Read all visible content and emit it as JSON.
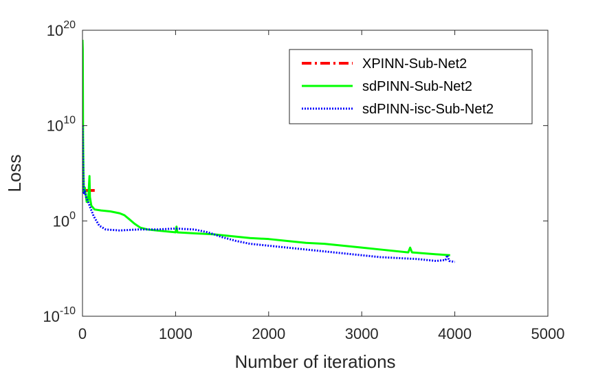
{
  "chart_data": {
    "type": "line",
    "title": "",
    "xlabel": "Number of iterations",
    "ylabel": "Loss",
    "xlim": [
      0,
      5000
    ],
    "ylim_log10": [
      -10,
      20
    ],
    "y_scale": "log",
    "x_ticks": [
      0,
      1000,
      2000,
      3000,
      4000,
      5000
    ],
    "x_tick_labels": [
      "0",
      "1000",
      "2000",
      "3000",
      "4000",
      "5000"
    ],
    "y_ticks_log10": [
      -10,
      0,
      10,
      20
    ],
    "y_tick_base": "10",
    "y_tick_exponents": [
      "-10",
      "0",
      "10",
      "20"
    ],
    "legend_position": "top-right",
    "series": [
      {
        "name": "XPINN-Sub-Net2",
        "color": "#ff0000",
        "style": "dashdot",
        "points_log10": [
          [
            0,
            7
          ],
          [
            5,
            5.5
          ],
          [
            10,
            3.5
          ],
          [
            20,
            3.2
          ],
          [
            60,
            3.2
          ],
          [
            100,
            3.2
          ],
          [
            140,
            3.2
          ]
        ]
      },
      {
        "name": "sdPINN-Sub-Net2",
        "color": "#00ff00",
        "style": "solid",
        "points_log10": [
          [
            0,
            19
          ],
          [
            3,
            18
          ],
          [
            6,
            9
          ],
          [
            10,
            5.5
          ],
          [
            15,
            3
          ],
          [
            25,
            3.5
          ],
          [
            45,
            2
          ],
          [
            60,
            2
          ],
          [
            75,
            4.7
          ],
          [
            80,
            2.5
          ],
          [
            95,
            1.6
          ],
          [
            130,
            1.2
          ],
          [
            200,
            1.1
          ],
          [
            300,
            1.0
          ],
          [
            400,
            0.8
          ],
          [
            450,
            0.6
          ],
          [
            500,
            0.2
          ],
          [
            560,
            -0.3
          ],
          [
            620,
            -0.7
          ],
          [
            700,
            -0.9
          ],
          [
            800,
            -1.0
          ],
          [
            1000,
            -1.2
          ],
          [
            1010,
            -0.6
          ],
          [
            1020,
            -1.2
          ],
          [
            1200,
            -1.3
          ],
          [
            1400,
            -1.4
          ],
          [
            1600,
            -1.6
          ],
          [
            1800,
            -1.8
          ],
          [
            2000,
            -1.9
          ],
          [
            2200,
            -2.1
          ],
          [
            2400,
            -2.3
          ],
          [
            2600,
            -2.4
          ],
          [
            2800,
            -2.6
          ],
          [
            3000,
            -2.8
          ],
          [
            3200,
            -3.0
          ],
          [
            3500,
            -3.3
          ],
          [
            3520,
            -2.8
          ],
          [
            3540,
            -3.3
          ],
          [
            3800,
            -3.5
          ],
          [
            3950,
            -3.6
          ]
        ]
      },
      {
        "name": "sdPINN-isc-Sub-Net2",
        "color": "#0000ff",
        "style": "dotted",
        "points_log10": [
          [
            0,
            10
          ],
          [
            3,
            8
          ],
          [
            8,
            5
          ],
          [
            15,
            2.8
          ],
          [
            25,
            3.1
          ],
          [
            40,
            2.5
          ],
          [
            80,
            1.5
          ],
          [
            120,
            0.5
          ],
          [
            180,
            -0.5
          ],
          [
            250,
            -0.9
          ],
          [
            400,
            -1.0
          ],
          [
            600,
            -0.9
          ],
          [
            800,
            -0.9
          ],
          [
            1000,
            -0.8
          ],
          [
            1200,
            -0.9
          ],
          [
            1350,
            -1.2
          ],
          [
            1500,
            -1.7
          ],
          [
            1650,
            -2.1
          ],
          [
            1800,
            -2.4
          ],
          [
            2000,
            -2.6
          ],
          [
            2200,
            -2.8
          ],
          [
            2400,
            -3.0
          ],
          [
            2600,
            -3.2
          ],
          [
            2800,
            -3.4
          ],
          [
            3000,
            -3.6
          ],
          [
            3200,
            -3.8
          ],
          [
            3400,
            -3.9
          ],
          [
            3600,
            -4.0
          ],
          [
            3800,
            -4.2
          ],
          [
            3900,
            -4.1
          ],
          [
            3920,
            -3.6
          ],
          [
            3940,
            -4.2
          ],
          [
            4000,
            -4.3
          ]
        ]
      }
    ]
  }
}
